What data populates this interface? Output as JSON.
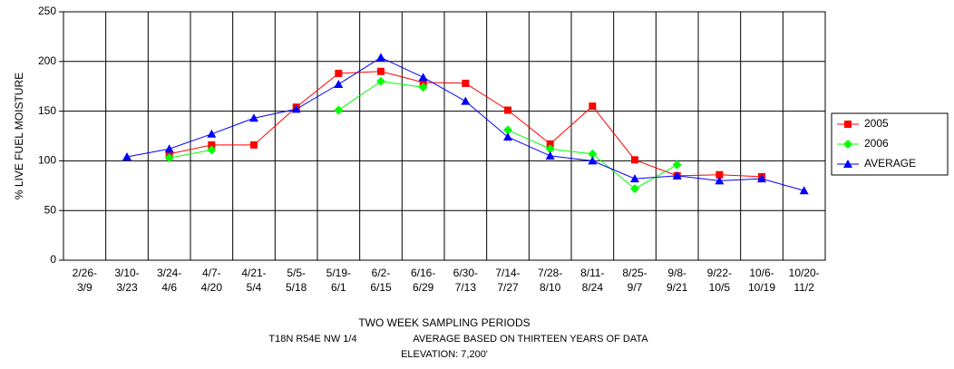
{
  "chart_data": {
    "type": "line",
    "y_label": "% LIVE FUEL MOISTURE",
    "x_label": "TWO WEEK SAMPLING PERIODS",
    "notes": [
      "T18N R54E NW 1/4",
      "AVERAGE BASED ON THIRTEEN YEARS OF DATA",
      "ELEVATION: 7,200'"
    ],
    "categories": [
      "2/26-\n3/9",
      "3/10-\n3/23",
      "3/24-\n4/6",
      "4/7-\n4/20",
      "4/21-\n5/4",
      "5/5-\n5/18",
      "5/19-\n6/1",
      "6/2-\n6/15",
      "6/16-\n6/29",
      "6/30-\n7/13",
      "7/14-\n7/27",
      "7/28-\n8/10",
      "8/11-\n8/24",
      "8/25-\n9/7",
      "9/8-\n9/21",
      "9/22-\n10/5",
      "10/6-\n10/19",
      "10/20-\n11/2"
    ],
    "series": [
      {
        "name": "2005",
        "color": "#ff0000",
        "marker": "square",
        "values": [
          null,
          null,
          107,
          116,
          116,
          154,
          188,
          190,
          179,
          178,
          151,
          117,
          155,
          101,
          85,
          86,
          84,
          null
        ]
      },
      {
        "name": "2006",
        "color": "#00ff00",
        "marker": "diamond",
        "values": [
          null,
          null,
          103,
          111,
          null,
          null,
          151,
          180,
          174,
          null,
          131,
          112,
          107,
          72,
          96,
          null,
          null,
          null
        ]
      },
      {
        "name": "AVERAGE",
        "color": "#0000ff",
        "marker": "triangle",
        "values": [
          null,
          104,
          112,
          127,
          143,
          152,
          177,
          204,
          184,
          160,
          124,
          105,
          100,
          82,
          85,
          80,
          82,
          70
        ]
      }
    ],
    "ylim": [
      0,
      250
    ],
    "yticks": [
      0,
      50,
      100,
      150,
      200,
      250
    ],
    "grid": true,
    "legend": "right"
  }
}
